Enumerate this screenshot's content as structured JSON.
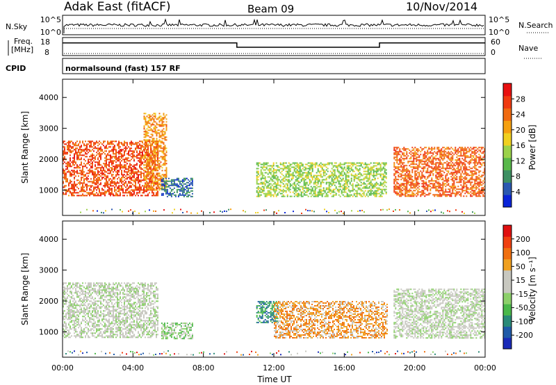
{
  "header": {
    "station": "Adak East (fitACF)",
    "beam": "Beam 09",
    "date": "10/Nov/2014"
  },
  "noise_panel": {
    "left_label": "N.Sky",
    "right_label": "N.Search",
    "left_ticks": [
      "10^5",
      "10^0"
    ],
    "right_ticks": [
      "10^5",
      "10^0"
    ]
  },
  "freq_panel": {
    "left_label_1": "Freq.",
    "left_label_2": "[MHz]",
    "left_ticks": [
      "18",
      "8"
    ],
    "right_label": "Nave",
    "right_ticks": [
      "60",
      "0"
    ]
  },
  "cpid_panel": {
    "label": "CPID",
    "text": "normalsound (fast) 157 RF"
  },
  "power_panel": {
    "ylabel": "Slant Range [km]",
    "y_ticks": [
      "4000",
      "3000",
      "2000",
      "1000"
    ],
    "colorbar_label": "Power [dB]",
    "colorbar_ticks": [
      "28",
      "24",
      "20",
      "16",
      "12",
      "8",
      "4"
    ],
    "colorbar_colors": [
      "#0a24d8",
      "#2a58b0",
      "#3d8f62",
      "#58b84a",
      "#9bd24a",
      "#f0d020",
      "#f5a010",
      "#f06a10",
      "#f03a10",
      "#e81010"
    ]
  },
  "velocity_panel": {
    "ylabel": "Slant Range [km]",
    "y_ticks": [
      "4000",
      "3000",
      "2000",
      "1000"
    ],
    "colorbar_label": "Velocity [m s⁻¹]",
    "colorbar_ticks": [
      "200",
      "100",
      "50",
      "15",
      "-15",
      "-50",
      "-100",
      "-200"
    ],
    "colorbar_colors": [
      "#1a2ab8",
      "#1f5aa8",
      "#2a8a78",
      "#4ab84a",
      "#8cd06a",
      "#c8c8c0",
      "#c8c8c0",
      "#f0a020",
      "#f07010",
      "#f04010",
      "#e01010"
    ]
  },
  "x_axis": {
    "label": "Time UT",
    "ticks": [
      "00:00",
      "04:00",
      "08:00",
      "12:00",
      "16:00",
      "20:00",
      "00:00"
    ]
  },
  "chart_data": [
    {
      "type": "line",
      "title": "Adak East (fitACF)",
      "panel": "frequency",
      "xlabel": "Time UT",
      "ylabel": "Freq. [MHz]",
      "xlim": [
        0,
        24
      ],
      "ylim": [
        8,
        18
      ],
      "series": [
        {
          "x": [
            0,
            9.9,
            9.9,
            18.0,
            18.0,
            24
          ],
          "values": [
            15,
            15,
            12.6,
            12.6,
            15,
            15
          ]
        }
      ]
    },
    {
      "type": "heatmap",
      "panel": "power",
      "xlabel": "Time UT",
      "ylabel": "Slant Range [km]",
      "colorbar": "Power [dB]",
      "xlim": [
        0,
        24
      ],
      "ylim": [
        180,
        4590
      ],
      "clim": [
        0,
        32
      ],
      "regions": [
        {
          "t0": 0.0,
          "t1": 5.4,
          "r0": 800,
          "r1": 2600,
          "value": 26
        },
        {
          "t0": 4.6,
          "t1": 5.9,
          "r0": 1000,
          "r1": 3500,
          "value": 22
        },
        {
          "t0": 5.6,
          "t1": 7.4,
          "r0": 800,
          "r1": 1400,
          "value": 6
        },
        {
          "t0": 11.0,
          "t1": 18.4,
          "r0": 800,
          "r1": 1900,
          "value": 14
        },
        {
          "t0": 18.8,
          "t1": 24.0,
          "r0": 800,
          "r1": 2400,
          "value": 25
        }
      ]
    },
    {
      "type": "heatmap",
      "panel": "velocity",
      "xlabel": "Time UT",
      "ylabel": "Slant Range [km]",
      "colorbar": "Velocity [m s⁻¹]",
      "xlim": [
        0,
        24
      ],
      "ylim": [
        180,
        4590
      ],
      "clim": [
        -240,
        240
      ],
      "regions": [
        {
          "t0": 0.0,
          "t1": 5.4,
          "r0": 800,
          "r1": 2600,
          "value": 0
        },
        {
          "t0": 5.6,
          "t1": 7.4,
          "r0": 800,
          "r1": 1300,
          "value": 40
        },
        {
          "t0": 11.0,
          "t1": 12.2,
          "r0": 1300,
          "r1": 2000,
          "value": 120
        },
        {
          "t0": 12.0,
          "t1": 18.4,
          "r0": 800,
          "r1": 2000,
          "value": -90
        },
        {
          "t0": 18.8,
          "t1": 24.0,
          "r0": 800,
          "r1": 2400,
          "value": 0
        }
      ]
    }
  ]
}
